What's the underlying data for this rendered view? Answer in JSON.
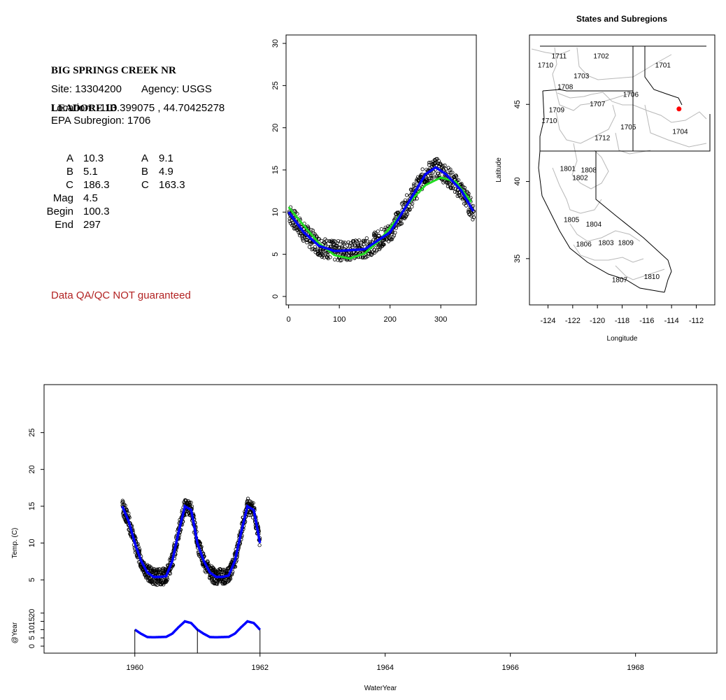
{
  "station": {
    "title_line1": "BIG SPRINGS CREEK NR",
    "title_line2": "LEADORE ID",
    "site": "Site: 13304200",
    "agency": "Agency: USGS",
    "location": "Location: -113.399075 , 44.70425278",
    "subregion": "EPA Subregion: 1706"
  },
  "params": {
    "col1": [
      {
        "label": "A",
        "value": "10.3"
      },
      {
        "label": "B",
        "value": "5.1"
      },
      {
        "label": "C",
        "value": "186.3"
      },
      {
        "label": "Mag",
        "value": "4.5"
      },
      {
        "label": "Begin",
        "value": "100.3"
      },
      {
        "label": "End",
        "value": "297"
      }
    ],
    "col2": [
      {
        "label": "A",
        "value": "9.1"
      },
      {
        "label": "B",
        "value": "4.9"
      },
      {
        "label": "C",
        "value": "163.3"
      }
    ]
  },
  "qa_note": "Data QA/QC NOT guaranteed",
  "colors": {
    "fit_blue": "#0000ff",
    "fit_green": "#22dd22",
    "point": "#000000",
    "qa_red": "#b22222",
    "site_marker": "#ff0000"
  },
  "chart_data": [
    {
      "type": "scatter",
      "title": "",
      "xlabel": "",
      "ylabel": "",
      "xlim": [
        -5,
        370
      ],
      "ylim": [
        -1,
        31
      ],
      "x_ticks": [
        "0",
        "100",
        "200",
        "300"
      ],
      "y_ticks": [
        "0",
        "5",
        "10",
        "15",
        "20",
        "25",
        "30"
      ],
      "observations": {
        "name": "",
        "day_range": [
          1,
          365
        ],
        "approx_min": 4.0,
        "approx_max": 16.3
      },
      "series": [
        {
          "name": "",
          "color": "#22dd22",
          "x": [
            0,
            30,
            60,
            90,
            120,
            150,
            180,
            210,
            240,
            270,
            300,
            330,
            360
          ],
          "y": [
            10.6,
            8.4,
            6.3,
            4.9,
            4.5,
            5.1,
            6.7,
            8.9,
            11.3,
            13.2,
            14.1,
            13.6,
            11.2
          ]
        },
        {
          "name": "",
          "color": "#0000ff",
          "x": [
            0,
            30,
            60,
            90,
            100,
            150,
            200,
            240,
            270,
            290,
            310,
            340,
            365
          ],
          "y": [
            10.0,
            7.6,
            6.0,
            5.4,
            5.4,
            5.6,
            7.6,
            11.5,
            14.5,
            15.3,
            14.5,
            12.6,
            10.0
          ]
        }
      ]
    },
    {
      "type": "map",
      "title": "States and Subregions",
      "xlabel": "Longitude",
      "ylabel": "Latitude",
      "xlim": [
        -125.5,
        -110.5
      ],
      "ylim": [
        32,
        49.5
      ],
      "x_ticks": [
        "-124",
        "-122",
        "-120",
        "-118",
        "-116",
        "-114",
        "-112"
      ],
      "y_ticks": [
        "35",
        "40",
        "45"
      ],
      "site": {
        "lon": -113.399075,
        "lat": 44.70425278
      },
      "region_labels": [
        {
          "label": "1711",
          "lon": -123.1,
          "lat": 48.1
        },
        {
          "label": "1710",
          "lon": -124.2,
          "lat": 47.5
        },
        {
          "label": "1702",
          "lon": -119.7,
          "lat": 48.1
        },
        {
          "label": "1701",
          "lon": -114.7,
          "lat": 47.5
        },
        {
          "label": "1703",
          "lon": -121.3,
          "lat": 46.8
        },
        {
          "label": "1708",
          "lon": -122.6,
          "lat": 46.1
        },
        {
          "label": "1706",
          "lon": -117.3,
          "lat": 45.6
        },
        {
          "label": "1707",
          "lon": -120.0,
          "lat": 45.0
        },
        {
          "label": "1709",
          "lon": -123.3,
          "lat": 44.6
        },
        {
          "label": "1710",
          "lon": -123.9,
          "lat": 43.9
        },
        {
          "label": "1705",
          "lon": -117.5,
          "lat": 43.5
        },
        {
          "label": "1704",
          "lon": -113.3,
          "lat": 43.2
        },
        {
          "label": "1712",
          "lon": -119.6,
          "lat": 42.8
        },
        {
          "label": "1801",
          "lon": -122.4,
          "lat": 40.8
        },
        {
          "label": "1808",
          "lon": -120.7,
          "lat": 40.7
        },
        {
          "label": "1802",
          "lon": -121.4,
          "lat": 40.2
        },
        {
          "label": "1805",
          "lon": -122.1,
          "lat": 37.5
        },
        {
          "label": "1804",
          "lon": -120.3,
          "lat": 37.2
        },
        {
          "label": "1806",
          "lon": -121.1,
          "lat": 35.9
        },
        {
          "label": "1803",
          "lon": -119.3,
          "lat": 36.0
        },
        {
          "label": "1809",
          "lon": -117.7,
          "lat": 36.0
        },
        {
          "label": "1807",
          "lon": -118.2,
          "lat": 33.6
        },
        {
          "label": "1810",
          "lon": -115.6,
          "lat": 33.8
        }
      ]
    },
    {
      "type": "line",
      "title": "",
      "xlabel": "WaterYear",
      "ylabel": "Temp. (C)",
      "ylabel_lower": "@Year",
      "xlim": [
        1958.55,
        1969.3
      ],
      "ylim_upper": [
        3.5,
        30
      ],
      "ylim_lower": [
        0,
        22
      ],
      "x_ticks": [
        "1960",
        "1962",
        "1964",
        "1966",
        "1968"
      ],
      "y_ticks_upper": [
        "5",
        "10",
        "15",
        "20",
        "25"
      ],
      "y_ticks_lower": [
        "0",
        "5",
        "10",
        "15",
        "20"
      ],
      "observations": {
        "name": "",
        "x_range": [
          1959.8,
          1962.0
        ],
        "approx_min": 4.0,
        "approx_max": 16.3
      },
      "series": [
        {
          "name": "",
          "color": "#0000ff",
          "x": [
            1959.8,
            1959.9,
            1960.0,
            1960.1,
            1960.2,
            1960.3,
            1960.4,
            1960.5,
            1960.6,
            1960.7,
            1960.8,
            1960.9,
            1961.0,
            1961.1,
            1961.2,
            1961.3,
            1961.4,
            1961.5,
            1961.6,
            1961.7,
            1961.8,
            1961.9,
            1962.0
          ],
          "y": [
            15.0,
            13.0,
            10.0,
            7.6,
            6.0,
            5.4,
            5.4,
            5.5,
            7.6,
            11.5,
            15.0,
            14.5,
            10.0,
            7.6,
            6.0,
            5.4,
            5.4,
            5.6,
            7.6,
            11.5,
            15.0,
            14.5,
            10.0
          ]
        }
      ],
      "lower_series": {
        "name": "",
        "color": "#0000ff",
        "x": [
          1960.0,
          1960.1,
          1960.2,
          1960.3,
          1960.5,
          1960.6,
          1960.7,
          1960.8,
          1960.9,
          1961.0,
          1961.1,
          1961.2,
          1961.3,
          1961.5,
          1961.6,
          1961.7,
          1961.8,
          1961.9,
          1962.0
        ],
        "y": [
          10.0,
          7.5,
          5.5,
          5.4,
          5.6,
          7.6,
          11.5,
          15.0,
          14.0,
          10.0,
          7.5,
          5.5,
          5.4,
          5.6,
          7.6,
          11.5,
          15.0,
          14.0,
          10.0
        ]
      },
      "year_marks": [
        1960,
        1961,
        1962
      ]
    }
  ]
}
